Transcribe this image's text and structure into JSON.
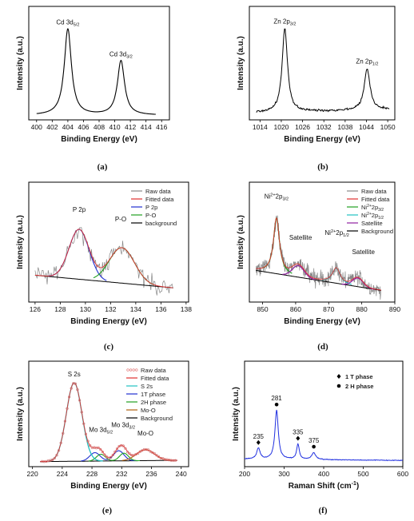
{
  "charts": [
    {
      "id": "a",
      "type": "line",
      "caption": "(a)",
      "xlabel": "Binding Energy (eV)",
      "ylabel": "Intensity (a.u.)",
      "xlim": [
        399,
        417
      ],
      "ylim": [
        0,
        1.25
      ],
      "xticks": [
        400,
        402,
        404,
        406,
        408,
        410,
        412,
        414,
        416
      ],
      "peaks": [
        {
          "center": 404.0,
          "height": 0.95,
          "width": 0.55
        },
        {
          "center": 410.8,
          "height": 0.6,
          "width": 0.55
        }
      ],
      "baseline": 0.05,
      "labels": [
        {
          "text": "Cd 3d",
          "sub": "5/2",
          "x": 404.0,
          "y": 1.05
        },
        {
          "text": "Cd 3d",
          "sub": "3/2",
          "x": 410.8,
          "y": 0.7
        }
      ]
    },
    {
      "id": "b",
      "type": "line",
      "caption": "(b)",
      "xlabel": "Binding Energy (eV)",
      "ylabel": "Intensity (a.u.)",
      "xlim": [
        1011,
        1052
      ],
      "ylim": [
        0,
        1.25
      ],
      "xticks": [
        1014,
        1020,
        1026,
        1032,
        1038,
        1044,
        1050
      ],
      "peaks": [
        {
          "center": 1021.0,
          "height": 0.92,
          "width": 0.9
        },
        {
          "center": 1044.2,
          "height": 0.45,
          "width": 1.0
        }
      ],
      "baseline": 0.08,
      "labels": [
        {
          "text": "Zn  2p",
          "sub": "3/2",
          "x": 1021.0,
          "y": 1.06
        },
        {
          "text": "Zn  2p",
          "sub": "1/2",
          "x": 1044.2,
          "y": 0.62
        }
      ]
    },
    {
      "id": "c",
      "type": "line",
      "caption": "(c)",
      "xlabel": "Binding Energy (eV)",
      "ylabel": "Intensity (a.u.)",
      "xlim": [
        125.5,
        138.2
      ],
      "ylim": [
        0,
        1.25
      ],
      "xticks": [
        126,
        128,
        130,
        132,
        134,
        136,
        138
      ],
      "legend": [
        {
          "label": "Raw data",
          "color": "#888888"
        },
        {
          "label": "Fitted data",
          "color": "#e03030"
        },
        {
          "label": "P 2p",
          "color": "#2030d0"
        },
        {
          "label": "P-O",
          "color": "#20a020"
        },
        {
          "label": "background",
          "color": "#000000"
        }
      ],
      "labels": [
        {
          "text": "P 2p",
          "sub": "",
          "x": 129.5,
          "y": 0.94
        },
        {
          "text": "P-O",
          "sub": "",
          "x": 132.8,
          "y": 0.84
        }
      ]
    },
    {
      "id": "d",
      "type": "line",
      "caption": "(d)",
      "xlabel": "Binding Energy (eV)",
      "ylabel": "Intensity (a.u.)",
      "xlim": [
        846,
        890
      ],
      "ylim": [
        0,
        1.25
      ],
      "xticks": [
        850,
        860,
        870,
        880,
        890
      ],
      "legend": [
        {
          "label": "Raw data",
          "color": "#888888"
        },
        {
          "label": "Fitted data",
          "color": "#e03030"
        },
        {
          "label": "Ni2+2p3/2",
          "color": "#20a020"
        },
        {
          "label": "Ni2+2p1/2",
          "color": "#20c0c0"
        },
        {
          "label": "Satellite",
          "color": "#9020a0"
        },
        {
          "label": "Background",
          "color": "#000000"
        }
      ],
      "labels": [
        {
          "text": "Ni",
          "sup": "2+",
          "rest": "2p",
          "sub": "3/2",
          "x": 854.2,
          "y": 1.08
        },
        {
          "text": "Satellite",
          "sup": "",
          "rest": "",
          "sub": "",
          "x": 861.5,
          "y": 0.65
        },
        {
          "text": "Ni",
          "sup": "2+",
          "rest": "2p",
          "sub": "1/2",
          "x": 872.5,
          "y": 0.7
        },
        {
          "text": "Satellite",
          "sup": "",
          "rest": "",
          "sub": "",
          "x": 880.5,
          "y": 0.5
        }
      ]
    },
    {
      "id": "e",
      "type": "line",
      "caption": "(e)",
      "xlabel": "Binding Energy (eV)",
      "ylabel": "Intensity (a.u.)",
      "xlim": [
        219.5,
        241
      ],
      "ylim": [
        0,
        1.25
      ],
      "xticks": [
        220,
        224,
        228,
        232,
        236,
        240
      ],
      "legend": [
        {
          "label": "Raw data",
          "color": "#e07070"
        },
        {
          "label": "Fitted data",
          "color": "#e03030"
        },
        {
          "label": "S 2s",
          "color": "#20c0c0"
        },
        {
          "label": "1T phase",
          "color": "#2030d0"
        },
        {
          "label": "2H phase",
          "color": "#20a020"
        },
        {
          "label": "Mo-O",
          "color": "#b06010"
        },
        {
          "label": "Background",
          "color": "#000000"
        }
      ],
      "labels": [
        {
          "text": "S 2s",
          "sub": "",
          "x": 225.6,
          "y": 1.07
        },
        {
          "text": "Mo 3d",
          "sub": "5/2",
          "x": 229.2,
          "y": 0.41
        },
        {
          "text": "Mo 3d",
          "sub": "3/2",
          "x": 232.2,
          "y": 0.47
        },
        {
          "text": "Mo-O",
          "sub": "",
          "x": 235.2,
          "y": 0.37
        }
      ]
    },
    {
      "id": "f",
      "type": "line",
      "caption": "(f)",
      "xlabel": "Raman Shift (cm",
      "xlabel_sup": "-1",
      "xlabel_end": ")",
      "ylabel": "Intensity (a.u.)",
      "xlim": [
        200,
        600
      ],
      "ylim": [
        0,
        1.25
      ],
      "xticks": [
        200,
        300,
        400,
        500,
        600
      ],
      "peaks": [
        {
          "center": 235,
          "height": 0.13,
          "width": 5,
          "label": "235",
          "marker": "diamond"
        },
        {
          "center": 281,
          "height": 0.58,
          "width": 5,
          "label": "281",
          "marker": "circle"
        },
        {
          "center": 335,
          "height": 0.18,
          "width": 4,
          "label": "335",
          "marker": "diamond"
        },
        {
          "center": 375,
          "height": 0.08,
          "width": 6,
          "label": "375",
          "marker": "circle"
        }
      ],
      "legend": [
        {
          "label": "1 T phase",
          "marker": "diamond"
        },
        {
          "label": "2 H phase",
          "marker": "circle"
        }
      ]
    }
  ]
}
